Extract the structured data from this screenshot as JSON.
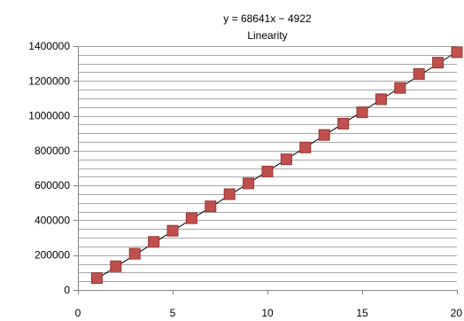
{
  "chart_data": {
    "type": "scatter",
    "title": "y = 68641x − 4922",
    "subtitle": "Linearity",
    "x": [
      1,
      2,
      3,
      4,
      5,
      6,
      7,
      8,
      9,
      10,
      11,
      12,
      13,
      14,
      15,
      16,
      17,
      18,
      19,
      20
    ],
    "series": [
      {
        "values": [
          68000,
          136000,
          208000,
          276000,
          340000,
          412000,
          480000,
          550000,
          612000,
          680000,
          750000,
          818000,
          890000,
          955000,
          1020000,
          1095000,
          1160000,
          1240000,
          1305000,
          1365000
        ],
        "marker": "square",
        "color": "#c0504d",
        "edge_color": "#943634"
      }
    ],
    "trendline": {
      "slope": 68641,
      "intercept": -4922,
      "color": "#000000"
    },
    "xlim": [
      0,
      20
    ],
    "ylim": [
      0,
      1400000
    ],
    "x_ticks": [
      0,
      5,
      10,
      15,
      20
    ],
    "x_tick_labels": [
      "0",
      "5",
      "10",
      "15",
      "20"
    ],
    "y_major_ticks": [
      0,
      200000,
      400000,
      600000,
      800000,
      1000000,
      1200000,
      1400000
    ],
    "y_tick_labels": [
      "0",
      "200000",
      "400000",
      "600000",
      "800000",
      "1000000",
      "1200000",
      "1400000"
    ],
    "y_minor_step": 50000,
    "grid": true,
    "grid_color": "#a6a6a6",
    "axis_color": "#868686"
  }
}
